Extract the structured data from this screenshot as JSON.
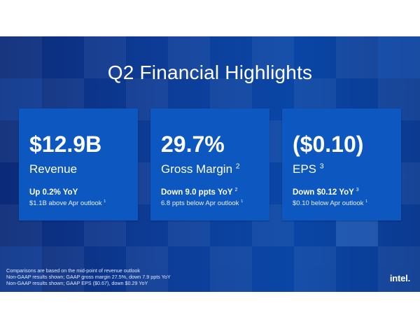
{
  "slide": {
    "title": "Q2 Financial Highlights",
    "background_color": "#0d3d98",
    "card_color": "#0c57c0"
  },
  "cards": [
    {
      "value": "$12.9B",
      "label": "Revenue",
      "label_note": "",
      "change": "Up 0.2% YoY",
      "change_note": "",
      "detail": "$1.1B above Apr outlook",
      "detail_note": "1"
    },
    {
      "value": "29.7%",
      "label": "Gross Margin",
      "label_note": "2",
      "change": "Down 9.0 ppts YoY",
      "change_note": "2",
      "detail": "6.8 ppts below Apr outlook",
      "detail_note": "1"
    },
    {
      "value": "($0.10)",
      "label": "EPS",
      "label_note": "3",
      "change": "Down $0.12 YoY",
      "change_note": "3",
      "detail": "$0.10 below Apr outlook",
      "detail_note": "1"
    }
  ],
  "footnotes": [
    "Comparisons are based on the mid-point of revenue outlook",
    "Non-GAAP results shown; GAAP gross margin 27.5%, down 7.9 ppts YoY",
    "Non-GAAP results shown; GAAP EPS ($0.67), down $0.29 YoY"
  ],
  "logo": {
    "text": "intel.",
    "icon": "intel-logo-icon"
  }
}
